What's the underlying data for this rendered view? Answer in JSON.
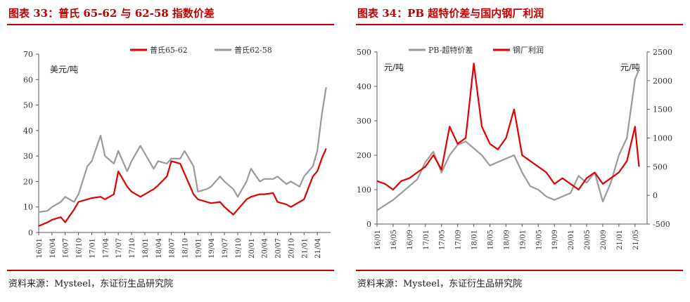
{
  "chart1": {
    "title": "图表 33：普氏 65-62 与 62-58 指数价差",
    "source": "资料来源：Mysteel，东证衍生品研究院",
    "chart_data": {
      "type": "line",
      "unit_label": "美元/吨",
      "ylim": [
        0,
        70
      ],
      "yticks": [
        "0",
        "10",
        "20",
        "30",
        "40",
        "50",
        "60",
        "70"
      ],
      "xticks": [
        "16/01",
        "16/04",
        "16/07",
        "16/10",
        "17/01",
        "17/04",
        "17/07",
        "17/10",
        "18/01",
        "18/04",
        "18/07",
        "18/10",
        "19/01",
        "19/04",
        "19/07",
        "19/10",
        "20/01",
        "20/04",
        "20/07",
        "20/10",
        "21/01",
        "21/04"
      ],
      "legend_position": "top",
      "x": [
        "16/01",
        "16/03",
        "16/04",
        "16/06",
        "16/07",
        "16/09",
        "16/10",
        "16/12",
        "17/01",
        "17/03",
        "17/04",
        "17/06",
        "17/07",
        "17/09",
        "17/10",
        "17/12",
        "18/01",
        "18/03",
        "18/04",
        "18/06",
        "18/07",
        "18/09",
        "18/10",
        "18/12",
        "19/01",
        "19/03",
        "19/04",
        "19/06",
        "19/07",
        "19/09",
        "19/10",
        "19/12",
        "20/01",
        "20/03",
        "20/04",
        "20/06",
        "20/07",
        "20/09",
        "20/10",
        "20/12",
        "21/01",
        "21/03",
        "21/04",
        "21/05",
        "21/06"
      ],
      "series": [
        {
          "name": "普氏65-62",
          "color": "#e00000",
          "values": [
            2.5,
            4,
            5,
            6,
            4,
            9,
            12,
            13,
            13.5,
            14,
            13,
            15,
            24,
            18,
            16,
            14,
            15,
            17,
            18.5,
            22,
            28,
            27,
            23,
            15,
            13,
            12,
            11.5,
            12,
            10,
            7,
            9,
            13,
            14,
            15,
            15,
            15.5,
            12,
            11,
            10,
            12,
            13,
            22,
            24,
            29,
            33
          ]
        },
        {
          "name": "普氏62-58",
          "color": "#999999",
          "values": [
            8,
            8.5,
            10,
            12,
            14,
            12,
            15,
            26,
            28,
            38,
            30,
            27,
            32,
            24,
            28,
            34,
            31,
            25,
            28,
            27,
            29,
            29,
            32,
            26,
            16,
            17,
            18,
            22,
            20,
            17,
            14,
            20,
            25,
            20,
            21,
            21,
            22,
            19,
            20,
            18,
            22,
            26,
            32,
            46,
            57
          ]
        }
      ]
    }
  },
  "chart2": {
    "title": "图表 34：PB 超特价差与国内钢厂利润",
    "source": "资料来源：Mysteel，东证衍生品研究院",
    "chart_data": {
      "type": "line",
      "unit_left": "元/吨",
      "unit_right": "元/吨",
      "ylim_left": [
        0,
        500
      ],
      "ylim_right": [
        -500,
        2500
      ],
      "yticks_left": [
        "0",
        "100",
        "200",
        "300",
        "400",
        "500"
      ],
      "yticks_right": [
        "-500",
        "0",
        "500",
        "1000",
        "1500",
        "2000",
        "2500"
      ],
      "xticks": [
        "16/01",
        "16/05",
        "16/09",
        "17/01",
        "17/05",
        "17/09",
        "18/01",
        "18/05",
        "18/09",
        "19/01",
        "19/05",
        "19/09",
        "20/01",
        "20/05",
        "20/09",
        "21/01",
        "21/05"
      ],
      "legend_position": "top",
      "x": [
        "16/01",
        "16/03",
        "16/05",
        "16/07",
        "16/09",
        "16/11",
        "17/01",
        "17/03",
        "17/05",
        "17/07",
        "17/09",
        "17/11",
        "18/01",
        "18/03",
        "18/05",
        "18/07",
        "18/09",
        "18/11",
        "19/01",
        "19/03",
        "19/05",
        "19/07",
        "19/09",
        "19/11",
        "20/01",
        "20/03",
        "20/05",
        "20/07",
        "20/09",
        "20/11",
        "21/01",
        "21/03",
        "21/05",
        "21/06"
      ],
      "series": [
        {
          "name": "PB-超特价差",
          "axis": "left",
          "color": "#999999",
          "values": [
            40,
            55,
            70,
            90,
            110,
            130,
            180,
            210,
            150,
            200,
            230,
            240,
            220,
            200,
            170,
            180,
            190,
            200,
            150,
            110,
            100,
            80,
            70,
            80,
            90,
            140,
            120,
            150,
            65,
            120,
            200,
            250,
            420,
            450
          ]
        },
        {
          "name": "钢厂利润",
          "axis": "right",
          "color": "#e00000",
          "values": [
            250,
            200,
            100,
            250,
            300,
            400,
            500,
            700,
            450,
            1200,
            900,
            1000,
            2300,
            1200,
            900,
            800,
            1000,
            1500,
            700,
            600,
            500,
            400,
            200,
            300,
            200,
            100,
            300,
            400,
            200,
            300,
            400,
            600,
            1200,
            500
          ]
        }
      ]
    }
  }
}
